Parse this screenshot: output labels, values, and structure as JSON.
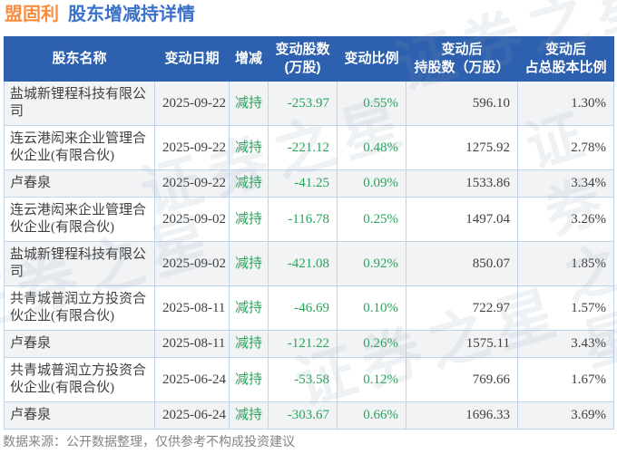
{
  "title": {
    "stock": "盟固利",
    "text": "股东增减持详情"
  },
  "watermark": {
    "text": "证券之星"
  },
  "footer": {
    "note": "数据来源：公开数据整理，仅供参考不构成投资建议"
  },
  "colors": {
    "title_orange": "#fb8c3d",
    "title_blue": "#3b71c9",
    "header_bg": "#2d60ae",
    "grid_border": "#bdd4ec",
    "row_alt": "#f2f3f5",
    "green": "#28a55a",
    "body_text": "#404040",
    "footer_gray": "#848484"
  },
  "chart_data": {
    "type": "table",
    "title": "盟固利 股东增减持详情",
    "columns": [
      "股东名称",
      "变动日期",
      "增减",
      "变动股数(万股)",
      "变动比例",
      "变动后持股数（万股）",
      "变动后占总股本比例"
    ],
    "header_lines": {
      "name": "股东名称",
      "date": "变动日期",
      "action": "增减",
      "change_shares": "变动股数\n(万股)",
      "change_ratio": "变动比例",
      "shares_after": "变动后\n持股数（万股）",
      "ratio_after": "变动后\n占总股本比例"
    },
    "rows": [
      {
        "name": "盐城新锂程科技有限公司",
        "date": "2025-09-22",
        "action": "减持",
        "change_shares": "-253.97",
        "change_ratio": "0.55%",
        "shares_after": "596.10",
        "ratio_after": "1.30%"
      },
      {
        "name": "连云港闳来企业管理合伙企业(有限合伙)",
        "date": "2025-09-22",
        "action": "减持",
        "change_shares": "-221.12",
        "change_ratio": "0.48%",
        "shares_after": "1275.92",
        "ratio_after": "2.78%"
      },
      {
        "name": "卢春泉",
        "date": "2025-09-22",
        "action": "减持",
        "change_shares": "-41.25",
        "change_ratio": "0.09%",
        "shares_after": "1533.86",
        "ratio_after": "3.34%"
      },
      {
        "name": "连云港闳来企业管理合伙企业(有限合伙)",
        "date": "2025-09-02",
        "action": "减持",
        "change_shares": "-116.78",
        "change_ratio": "0.25%",
        "shares_after": "1497.04",
        "ratio_after": "3.26%"
      },
      {
        "name": "盐城新锂程科技有限公司",
        "date": "2025-09-02",
        "action": "减持",
        "change_shares": "-421.08",
        "change_ratio": "0.92%",
        "shares_after": "850.07",
        "ratio_after": "1.85%"
      },
      {
        "name": "共青城普润立方投资合伙企业(有限合伙)",
        "date": "2025-08-11",
        "action": "减持",
        "change_shares": "-46.69",
        "change_ratio": "0.10%",
        "shares_after": "722.97",
        "ratio_after": "1.57%"
      },
      {
        "name": "卢春泉",
        "date": "2025-08-11",
        "action": "减持",
        "change_shares": "-121.22",
        "change_ratio": "0.26%",
        "shares_after": "1575.11",
        "ratio_after": "3.43%"
      },
      {
        "name": "共青城普润立方投资合伙企业(有限合伙)",
        "date": "2025-06-24",
        "action": "减持",
        "change_shares": "-53.58",
        "change_ratio": "0.12%",
        "shares_after": "769.66",
        "ratio_after": "1.67%"
      },
      {
        "name": "卢春泉",
        "date": "2025-06-24",
        "action": "减持",
        "change_shares": "-303.67",
        "change_ratio": "0.66%",
        "shares_after": "1696.33",
        "ratio_after": "3.69%"
      }
    ]
  }
}
